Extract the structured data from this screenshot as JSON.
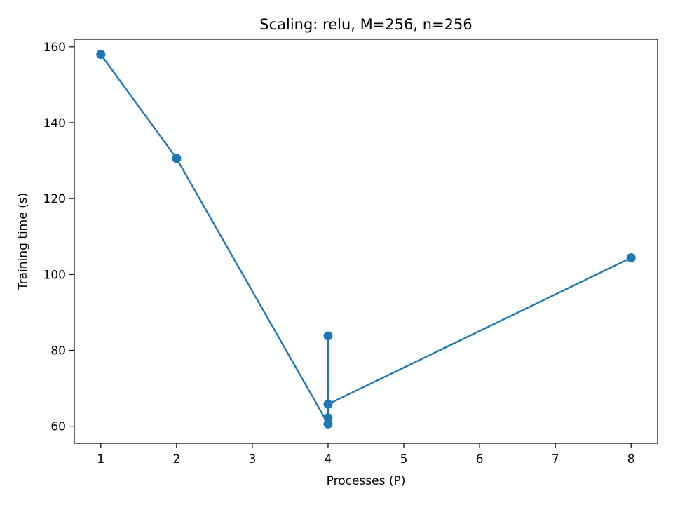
{
  "chart_data": {
    "type": "line",
    "title": "Scaling: relu, M=256, n=256",
    "xlabel": "Processes (P)",
    "ylabel": "Training time (s)",
    "xlim": [
      0.65,
      8.35
    ],
    "ylim": [
      55.5,
      162.0
    ],
    "xticks": [
      1,
      2,
      3,
      4,
      5,
      6,
      7,
      8
    ],
    "yticks": [
      60,
      80,
      100,
      120,
      140,
      160
    ],
    "grid": false,
    "legend": "none",
    "series": [
      {
        "color": "#1f77b4",
        "marker": "circle",
        "points": [
          {
            "x": 1,
            "y": 158.0
          },
          {
            "x": 2,
            "y": 130.6
          },
          {
            "x": 4,
            "y": 60.6
          },
          {
            "x": 4,
            "y": 62.2
          },
          {
            "x": 4,
            "y": 83.8
          },
          {
            "x": 4,
            "y": 65.8
          },
          {
            "x": 8,
            "y": 104.4
          }
        ]
      }
    ]
  }
}
